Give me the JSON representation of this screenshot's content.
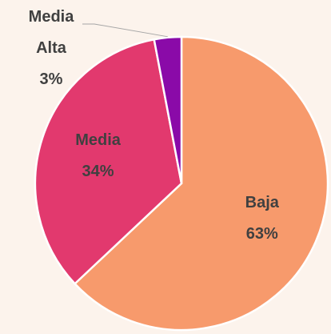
{
  "chart_data": {
    "type": "pie",
    "categories": [
      "Baja",
      "Media",
      "Media Alta"
    ],
    "values": [
      63,
      34,
      3
    ],
    "value_labels": [
      "63%",
      "34%",
      "3%"
    ],
    "colors": [
      "#f79a6c",
      "#e2396e",
      "#8a0aa8"
    ]
  }
}
